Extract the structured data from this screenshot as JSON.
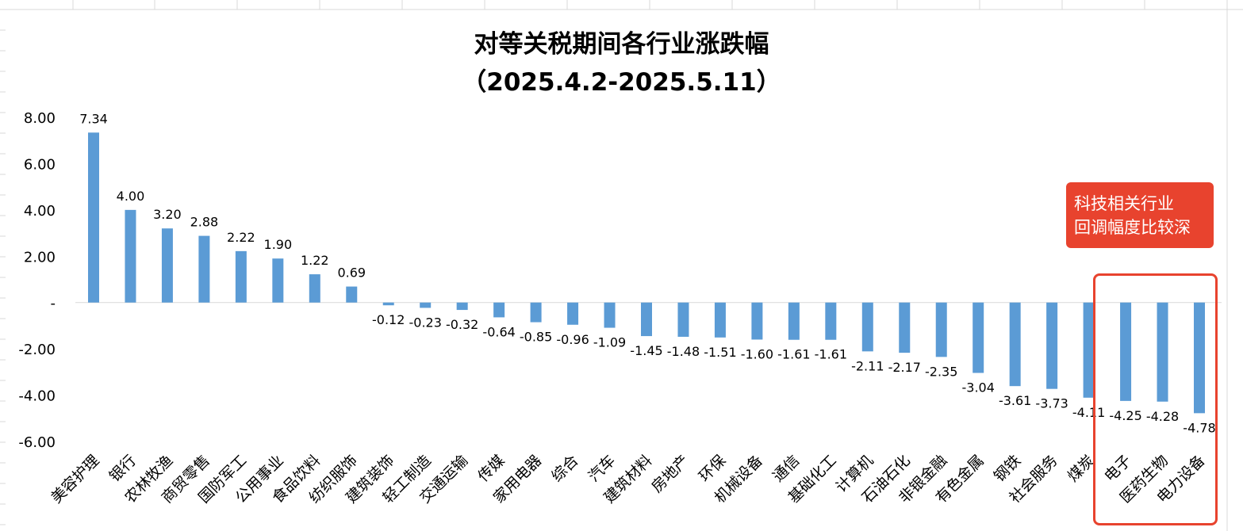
{
  "chart_data": {
    "type": "bar",
    "title": "对等关税期间各行业涨跌幅",
    "subtitle": "（2025.4.2-2025.5.11）",
    "categories": [
      "美容护理",
      "银行",
      "农林牧渔",
      "商贸零售",
      "国防军工",
      "公用事业",
      "食品饮料",
      "纺织服饰",
      "建筑装饰",
      "轻工制造",
      "交通运输",
      "传媒",
      "家用电器",
      "综合",
      "汽车",
      "建筑材料",
      "房地产",
      "环保",
      "机械设备",
      "通信",
      "基础化工",
      "计算机",
      "石油石化",
      "非银金融",
      "有色金属",
      "钢铁",
      "社会服务",
      "煤炭",
      "电子",
      "医药生物",
      "电力设备"
    ],
    "values": [
      7.34,
      4.0,
      3.2,
      2.88,
      2.22,
      1.9,
      1.22,
      0.69,
      -0.12,
      -0.23,
      -0.32,
      -0.64,
      -0.85,
      -0.96,
      -1.09,
      -1.45,
      -1.48,
      -1.51,
      -1.6,
      -1.61,
      -1.61,
      -2.11,
      -2.17,
      -2.35,
      -3.04,
      -3.61,
      -3.73,
      -4.11,
      -4.25,
      -4.28,
      -4.78
    ],
    "value_labels": [
      "7.34",
      "4.00",
      "3.20",
      "2.88",
      "2.22",
      "1.90",
      "1.22",
      "0.69",
      "-0.12",
      "-0.23",
      "-0.32",
      "-0.64",
      "-0.85",
      "-0.96",
      "-1.09",
      "-1.45",
      "-1.48",
      "-1.51",
      "-1.60",
      "-1.61",
      "-1.61",
      "-2.11",
      "-2.17",
      "-2.35",
      "-3.04",
      "-3.61",
      "-3.73",
      "-4.11",
      "-4.25",
      "-4.28",
      "-4.78"
    ],
    "y_ticks": [
      8,
      6,
      4,
      2,
      0,
      -2,
      -4,
      -6
    ],
    "y_tick_labels": [
      "8.00",
      "6.00",
      "4.00",
      "2.00",
      "-",
      "-2.00",
      "-4.00",
      "-6.00"
    ],
    "ylim": [
      -6,
      8
    ],
    "bar_color": "#5b9bd5",
    "grid": false
  },
  "annotation": {
    "line1": "科技相关行业",
    "line2": "回调幅度比较深",
    "color": "#e8432e",
    "highlighted_categories": [
      "电子",
      "医药生物",
      "电力设备"
    ]
  }
}
